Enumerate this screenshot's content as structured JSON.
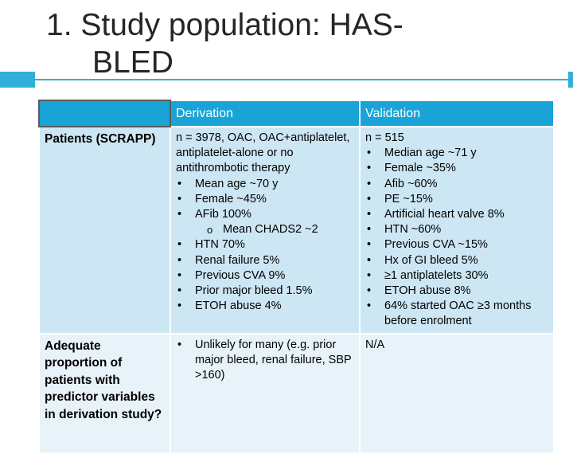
{
  "title": {
    "line1": "1.  Study population: HAS-",
    "line2": "BLED"
  },
  "table": {
    "headers": [
      "",
      "Derivation",
      "Validation"
    ],
    "rows": [
      {
        "label": "Patients (SCRAPP)",
        "derivation_intro": "n = 3978, OAC, OAC+antiplatelet, antiplatelet-alone or no antithrombotic therapy",
        "derivation_bullets_a": [
          "Mean age ~70 y",
          "Female ~45%",
          "AFib 100%"
        ],
        "derivation_sub": [
          "Mean CHADS2 ~2"
        ],
        "derivation_bullets_b": [
          "HTN 70%",
          "Renal failure 5%",
          "Previous CVA 9%",
          "Prior major bleed 1.5%",
          "ETOH abuse 4%"
        ],
        "validation_intro": "n = 515",
        "validation_bullets": [
          "Median age ~71 y",
          "Female ~35%",
          "Afib ~60%",
          "PE ~15%",
          "Artificial heart valve 8%",
          "HTN ~60%",
          "Previous CVA ~15%",
          "Hx of GI bleed 5%",
          "≥1 antiplatelets 30%",
          "ETOH abuse 8%",
          "64% started OAC ≥3 months before enrolment"
        ]
      },
      {
        "label": "Adequate proportion of patients with predictor variables in derivation study?",
        "derivation_bullets": [
          "Unlikely for many (e.g. prior major bleed, renal failure, SBP >160)"
        ],
        "validation_text": "N/A"
      }
    ]
  },
  "colors": {
    "accent": "#30b0d8",
    "header_bg": "#1aa3d6",
    "row1_bg": "#cde6f3",
    "row2_bg": "#e7f2f9"
  }
}
